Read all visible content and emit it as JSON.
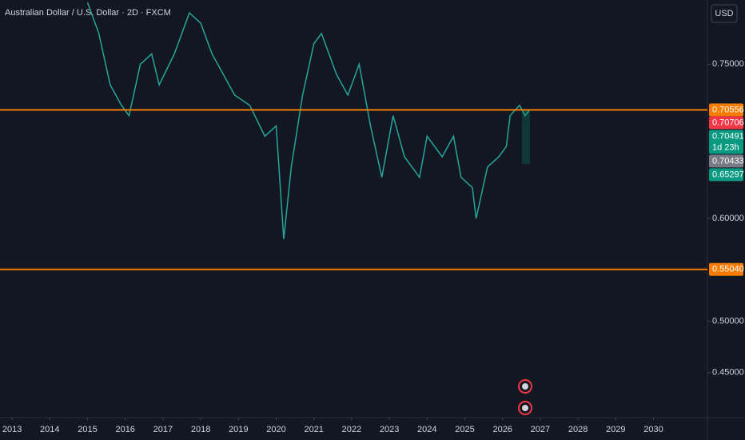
{
  "chart_data": {
    "type": "line",
    "title": "Australian Dollar / U.S. Dollar · 2D · FXCM",
    "currency": "USD",
    "x": [
      2015.0,
      2015.3,
      2015.6,
      2015.9,
      2016.1,
      2016.4,
      2016.7,
      2016.9,
      2017.3,
      2017.7,
      2018.0,
      2018.3,
      2018.6,
      2018.9,
      2019.3,
      2019.7,
      2020.0,
      2020.2,
      2020.4,
      2020.7,
      2021.0,
      2021.2,
      2021.6,
      2021.9,
      2022.2,
      2022.5,
      2022.8,
      2023.1,
      2023.4,
      2023.8,
      2024.0,
      2024.4,
      2024.7,
      2024.9,
      2025.2,
      2025.3,
      2025.6,
      2025.9,
      2026.1,
      2026.2,
      2026.45,
      2026.6,
      2026.7
    ],
    "series": [
      {
        "color": "#26a69a",
        "values": [
          0.81,
          0.78,
          0.73,
          0.71,
          0.7,
          0.75,
          0.76,
          0.73,
          0.76,
          0.8,
          0.79,
          0.76,
          0.74,
          0.72,
          0.71,
          0.68,
          0.69,
          0.58,
          0.65,
          0.72,
          0.77,
          0.78,
          0.74,
          0.72,
          0.75,
          0.69,
          0.64,
          0.7,
          0.66,
          0.64,
          0.68,
          0.66,
          0.68,
          0.64,
          0.63,
          0.6,
          0.65,
          0.66,
          0.67,
          0.7,
          0.71,
          0.7,
          0.705
        ]
      }
    ],
    "xlim": [
      2012.68,
      2031.43
    ],
    "ylim": [
      0.40625,
      0.8125
    ],
    "xticks": [
      2013,
      2014,
      2015,
      2016,
      2017,
      2018,
      2019,
      2020,
      2021,
      2022,
      2023,
      2024,
      2025,
      2026,
      2027,
      2028,
      2029,
      2030
    ],
    "yticks": [
      {
        "value": 0.75,
        "label": "0.75000"
      },
      {
        "value": 0.6,
        "label": "0.60000"
      },
      {
        "value": 0.5,
        "label": "0.50000"
      },
      {
        "value": 0.45,
        "label": "0.45000"
      }
    ],
    "levels": [
      {
        "value": 0.70556,
        "label": "0.70556",
        "color": "#f57c00"
      },
      {
        "value": 0.5504,
        "label": "0.55040",
        "color": "#f57c00"
      }
    ],
    "price_labels": [
      {
        "value": 0.70706,
        "label": "0.70706",
        "color": "#f23645"
      },
      {
        "value": 0.70491,
        "label": "0.70491",
        "color": "#089981",
        "countdown": "1d 23h"
      },
      {
        "value": 0.70433,
        "label": "0.70433",
        "color": "#787b86"
      },
      {
        "value": 0.65297,
        "label": "0.65297",
        "color": "#089981"
      }
    ]
  }
}
